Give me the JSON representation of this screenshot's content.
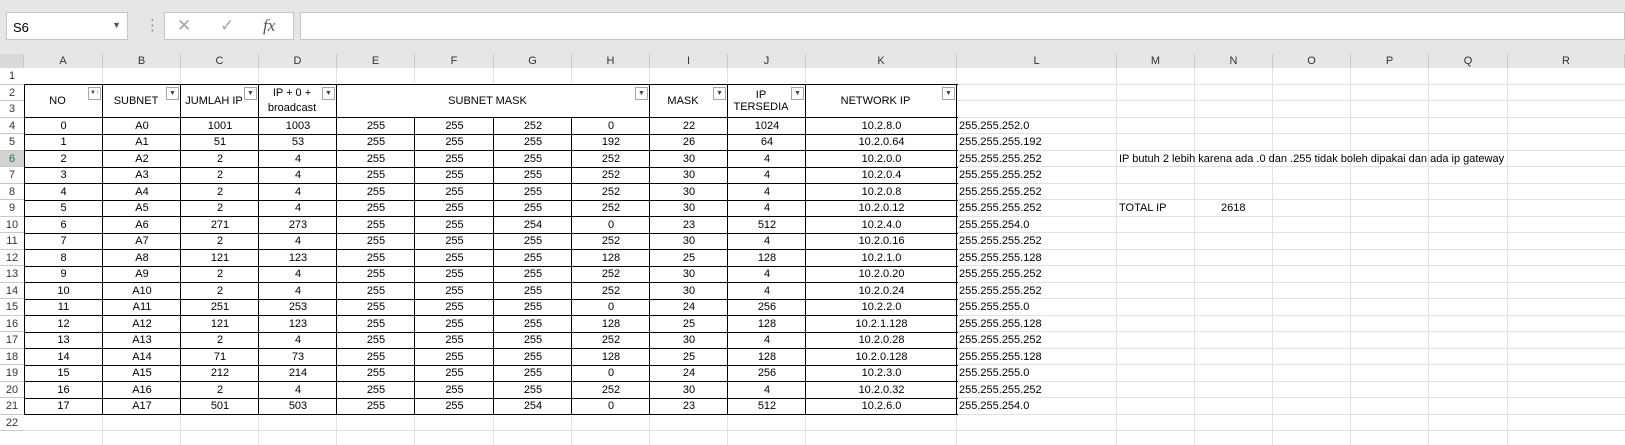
{
  "namebox": "S6",
  "formula": "",
  "columns": [
    "A",
    "B",
    "C",
    "D",
    "E",
    "F",
    "G",
    "H",
    "I",
    "J",
    "K",
    "L",
    "M",
    "N",
    "O",
    "P",
    "Q",
    "R"
  ],
  "rows": [
    "1",
    "2",
    "3",
    "4",
    "5",
    "6",
    "7",
    "8",
    "9",
    "10",
    "11",
    "12",
    "13",
    "14",
    "15",
    "16",
    "17",
    "18",
    "19",
    "20",
    "21",
    "22"
  ],
  "headers": {
    "no": "NO",
    "subnet": "SUBNET",
    "jumlah_ip": "JUMLAH IP",
    "ip_broadcast_line1": "IP + 0 +",
    "ip_broadcast_line2": "broadcast",
    "subnet_mask": "SUBNET MASK",
    "mask": "MASK",
    "ip_tersedia": "IP TERSEDIA",
    "network_ip": "NETWORK IP"
  },
  "data": [
    [
      "0",
      "A0",
      "1001",
      "1003",
      "255",
      "255",
      "252",
      "0",
      "22",
      "1024",
      "10.2.8.0",
      "255.255.252.0"
    ],
    [
      "1",
      "A1",
      "51",
      "53",
      "255",
      "255",
      "255",
      "192",
      "26",
      "64",
      "10.2.0.64",
      "255.255.255.192"
    ],
    [
      "2",
      "A2",
      "2",
      "4",
      "255",
      "255",
      "255",
      "252",
      "30",
      "4",
      "10.2.0.0",
      "255.255.255.252"
    ],
    [
      "3",
      "A3",
      "2",
      "4",
      "255",
      "255",
      "255",
      "252",
      "30",
      "4",
      "10.2.0.4",
      "255.255.255.252"
    ],
    [
      "4",
      "A4",
      "2",
      "4",
      "255",
      "255",
      "255",
      "252",
      "30",
      "4",
      "10.2.0.8",
      "255.255.255.252"
    ],
    [
      "5",
      "A5",
      "2",
      "4",
      "255",
      "255",
      "255",
      "252",
      "30",
      "4",
      "10.2.0.12",
      "255.255.255.252"
    ],
    [
      "6",
      "A6",
      "271",
      "273",
      "255",
      "255",
      "254",
      "0",
      "23",
      "512",
      "10.2.4.0",
      "255.255.254.0"
    ],
    [
      "7",
      "A7",
      "2",
      "4",
      "255",
      "255",
      "255",
      "252",
      "30",
      "4",
      "10.2.0.16",
      "255.255.255.252"
    ],
    [
      "8",
      "A8",
      "121",
      "123",
      "255",
      "255",
      "255",
      "128",
      "25",
      "128",
      "10.2.1.0",
      "255.255.255.128"
    ],
    [
      "9",
      "A9",
      "2",
      "4",
      "255",
      "255",
      "255",
      "252",
      "30",
      "4",
      "10.2.0.20",
      "255.255.255.252"
    ],
    [
      "10",
      "A10",
      "2",
      "4",
      "255",
      "255",
      "255",
      "252",
      "30",
      "4",
      "10.2.0.24",
      "255.255.255.252"
    ],
    [
      "11",
      "A11",
      "251",
      "253",
      "255",
      "255",
      "255",
      "0",
      "24",
      "256",
      "10.2.2.0",
      "255.255.255.0"
    ],
    [
      "12",
      "A12",
      "121",
      "123",
      "255",
      "255",
      "255",
      "128",
      "25",
      "128",
      "10.2.1.128",
      "255.255.255.128"
    ],
    [
      "13",
      "A13",
      "2",
      "4",
      "255",
      "255",
      "255",
      "252",
      "30",
      "4",
      "10.2.0.28",
      "255.255.255.252"
    ],
    [
      "14",
      "A14",
      "71",
      "73",
      "255",
      "255",
      "255",
      "128",
      "25",
      "128",
      "10.2.0.128",
      "255.255.255.128"
    ],
    [
      "15",
      "A15",
      "212",
      "214",
      "255",
      "255",
      "255",
      "0",
      "24",
      "256",
      "10.2.3.0",
      "255.255.255.0"
    ],
    [
      "16",
      "A16",
      "2",
      "4",
      "255",
      "255",
      "255",
      "252",
      "30",
      "4",
      "10.2.0.32",
      "255.255.255.252"
    ],
    [
      "17",
      "A17",
      "501",
      "503",
      "255",
      "255",
      "254",
      "0",
      "23",
      "512",
      "10.2.6.0",
      "255.255.254.0"
    ]
  ],
  "note": "IP butuh 2 lebih karena ada .0 dan .255 tidak boleh dipakai dan ada ip gateway",
  "total_label": "TOTAL IP",
  "total_value": "2618"
}
